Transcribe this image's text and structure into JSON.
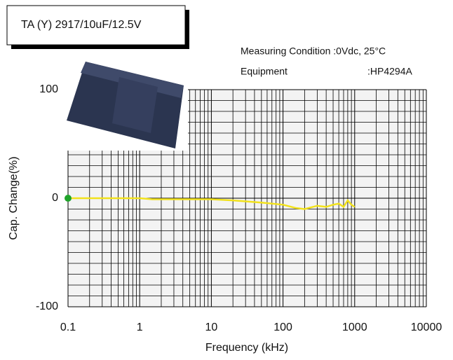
{
  "chart_data": {
    "type": "line",
    "title": "TA (Y) 2917/10uF/12.5V",
    "annotations": [
      "Measuring Condition :0Vdc, 25°C",
      "Equipment",
      ":HP4294A"
    ],
    "x_label": "Frequency (kHz)",
    "y_label": "Cap. Change(%)",
    "x": [
      0.1,
      0.2,
      0.5,
      1,
      1.5,
      3,
      10,
      20,
      50,
      100,
      150,
      200,
      300,
      400,
      500,
      600,
      700,
      800,
      900,
      1000
    ],
    "series": [
      {
        "name": "Cap. Change",
        "color": "#f2e21c",
        "values": [
          0,
          0,
          0,
          0,
          -1,
          -1,
          -1,
          -2,
          -4,
          -6,
          -9,
          -10,
          -7,
          -8,
          -6,
          -5,
          -8,
          -2,
          -6,
          -8
        ]
      }
    ],
    "start_marker_color": "#1fa32a",
    "log_x": true,
    "xlim": [
      0.1,
      10000
    ],
    "xticks": [
      0.1,
      1,
      10,
      100,
      1000,
      10000
    ],
    "ylim": [
      -100,
      100
    ],
    "yticks": [
      -100,
      0,
      100
    ],
    "grid": true
  }
}
